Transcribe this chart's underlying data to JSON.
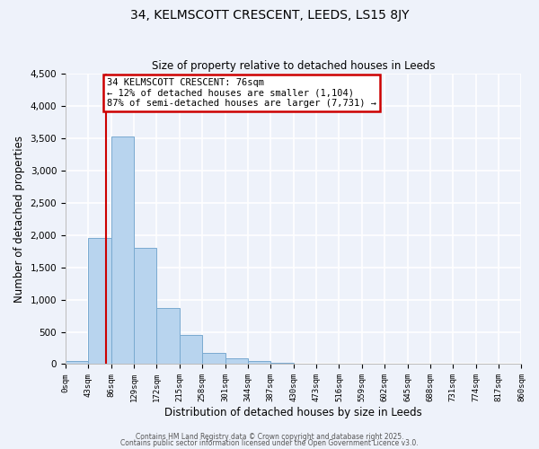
{
  "title": "34, KELMSCOTT CRESCENT, LEEDS, LS15 8JY",
  "subtitle": "Size of property relative to detached houses in Leeds",
  "xlabel": "Distribution of detached houses by size in Leeds",
  "ylabel": "Number of detached properties",
  "bar_color": "#b8d4ee",
  "bar_edge_color": "#7aaad0",
  "background_color": "#eef2fa",
  "grid_color": "#ffffff",
  "bin_edges": [
    0,
    43,
    86,
    129,
    172,
    215,
    258,
    301,
    344,
    387,
    430,
    473,
    516,
    559,
    602,
    645,
    688,
    731,
    774,
    817,
    860
  ],
  "bar_heights": [
    48,
    1950,
    3520,
    1800,
    870,
    450,
    170,
    90,
    50,
    20,
    8,
    4,
    2,
    1,
    1,
    0,
    0,
    0,
    0,
    0
  ],
  "tick_labels": [
    "0sqm",
    "43sqm",
    "86sqm",
    "129sqm",
    "172sqm",
    "215sqm",
    "258sqm",
    "301sqm",
    "344sqm",
    "387sqm",
    "430sqm",
    "473sqm",
    "516sqm",
    "559sqm",
    "602sqm",
    "645sqm",
    "688sqm",
    "731sqm",
    "774sqm",
    "817sqm",
    "860sqm"
  ],
  "ylim": [
    0,
    4500
  ],
  "yticks": [
    0,
    500,
    1000,
    1500,
    2000,
    2500,
    3000,
    3500,
    4000,
    4500
  ],
  "property_size": 76,
  "annotation_title": "34 KELMSCOTT CRESCENT: 76sqm",
  "annotation_line1": "← 12% of detached houses are smaller (1,104)",
  "annotation_line2": "87% of semi-detached houses are larger (7,731) →",
  "annotation_box_color": "#ffffff",
  "annotation_box_edge": "#cc0000",
  "vline_color": "#cc0000",
  "footer_line1": "Contains HM Land Registry data © Crown copyright and database right 2025.",
  "footer_line2": "Contains public sector information licensed under the Open Government Licence v3.0."
}
